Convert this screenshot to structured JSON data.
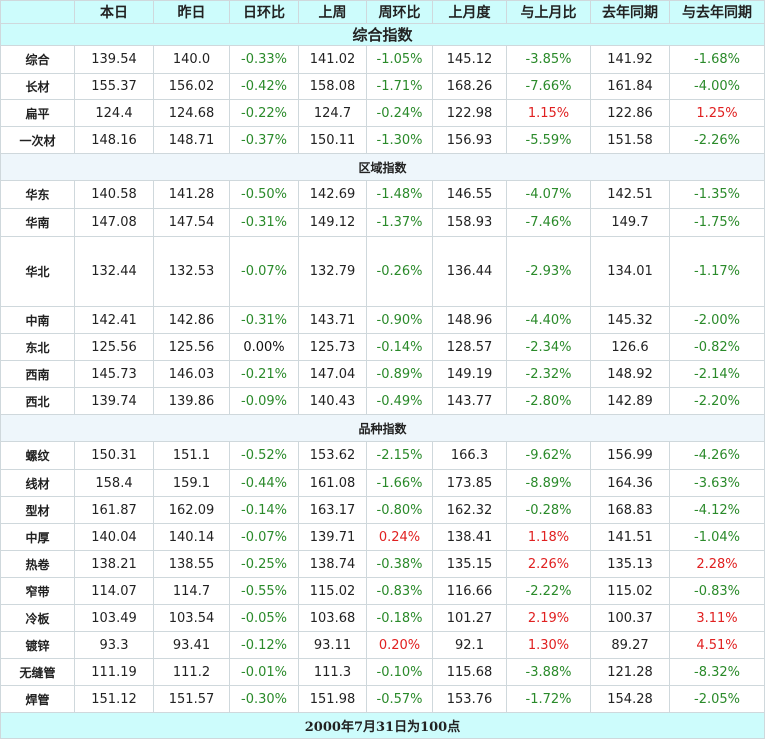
{
  "headers": [
    "",
    "本日",
    "昨日",
    "日环比",
    "上周",
    "周环比",
    "上月度",
    "与上月比",
    "去年同期",
    "与去年同期"
  ],
  "title": "综合指数",
  "footer": "2000年7月31日为100点",
  "colors": {
    "header_bg": "#cdfcfc",
    "negative": "#2a8a2a",
    "positive": "#e02020"
  },
  "sections": [
    {
      "label": "",
      "rows": [
        {
          "name": "综合",
          "cells": [
            "139.54",
            "140.0",
            "-0.33%",
            "141.02",
            "-1.05%",
            "145.12",
            "-3.85%",
            "141.92",
            "-1.68%"
          ],
          "h": 28
        },
        {
          "name": "长材",
          "cells": [
            "155.37",
            "156.02",
            "-0.42%",
            "158.08",
            "-1.71%",
            "168.26",
            "-7.66%",
            "161.84",
            "-4.00%"
          ],
          "h": 26
        },
        {
          "name": "扁平",
          "cells": [
            "124.4",
            "124.68",
            "-0.22%",
            "124.7",
            "-0.24%",
            "122.98",
            "1.15%",
            "122.86",
            "1.25%"
          ],
          "h": 27
        },
        {
          "name": "一次材",
          "cells": [
            "148.16",
            "148.71",
            "-0.37%",
            "150.11",
            "-1.30%",
            "156.93",
            "-5.59%",
            "151.58",
            "-2.26%"
          ],
          "h": 27
        }
      ]
    },
    {
      "label": "区域指数",
      "rows": [
        {
          "name": "华东",
          "cells": [
            "140.58",
            "141.28",
            "-0.50%",
            "142.69",
            "-1.48%",
            "146.55",
            "-4.07%",
            "142.51",
            "-1.35%"
          ],
          "h": 28
        },
        {
          "name": "华南",
          "cells": [
            "147.08",
            "147.54",
            "-0.31%",
            "149.12",
            "-1.37%",
            "158.93",
            "-7.46%",
            "149.7",
            "-1.75%"
          ],
          "h": 28
        },
        {
          "name": "华北",
          "cells": [
            "132.44",
            "132.53",
            "-0.07%",
            "132.79",
            "-0.26%",
            "136.44",
            "-2.93%",
            "134.01",
            "-1.17%"
          ],
          "h": 70
        },
        {
          "name": "中南",
          "cells": [
            "142.41",
            "142.86",
            "-0.31%",
            "143.71",
            "-0.90%",
            "148.96",
            "-4.40%",
            "145.32",
            "-2.00%"
          ],
          "h": 27
        },
        {
          "name": "东北",
          "cells": [
            "125.56",
            "125.56",
            "0.00%",
            "125.73",
            "-0.14%",
            "128.57",
            "-2.34%",
            "126.6",
            "-0.82%"
          ],
          "h": 27
        },
        {
          "name": "西南",
          "cells": [
            "145.73",
            "146.03",
            "-0.21%",
            "147.04",
            "-0.89%",
            "149.19",
            "-2.32%",
            "148.92",
            "-2.14%"
          ],
          "h": 27
        },
        {
          "name": "西北",
          "cells": [
            "139.74",
            "139.86",
            "-0.09%",
            "140.43",
            "-0.49%",
            "143.77",
            "-2.80%",
            "142.89",
            "-2.20%"
          ],
          "h": 27
        }
      ]
    },
    {
      "label": "品种指数",
      "rows": [
        {
          "name": "螺纹",
          "cells": [
            "150.31",
            "151.1",
            "-0.52%",
            "153.62",
            "-2.15%",
            "166.3",
            "-9.62%",
            "156.99",
            "-4.26%"
          ],
          "h": 28
        },
        {
          "name": "线材",
          "cells": [
            "158.4",
            "159.1",
            "-0.44%",
            "161.08",
            "-1.66%",
            "173.85",
            "-8.89%",
            "164.36",
            "-3.63%"
          ],
          "h": 27
        },
        {
          "name": "型材",
          "cells": [
            "161.87",
            "162.09",
            "-0.14%",
            "163.17",
            "-0.80%",
            "162.32",
            "-0.28%",
            "168.83",
            "-4.12%"
          ],
          "h": 27
        },
        {
          "name": "中厚",
          "cells": [
            "140.04",
            "140.14",
            "-0.07%",
            "139.71",
            "0.24%",
            "138.41",
            "1.18%",
            "141.51",
            "-1.04%"
          ],
          "h": 27
        },
        {
          "name": "热卷",
          "cells": [
            "138.21",
            "138.55",
            "-0.25%",
            "138.74",
            "-0.38%",
            "135.15",
            "2.26%",
            "135.13",
            "2.28%"
          ],
          "h": 27
        },
        {
          "name": "窄带",
          "cells": [
            "114.07",
            "114.7",
            "-0.55%",
            "115.02",
            "-0.83%",
            "116.66",
            "-2.22%",
            "115.02",
            "-0.83%"
          ],
          "h": 27
        },
        {
          "name": "冷板",
          "cells": [
            "103.49",
            "103.54",
            "-0.05%",
            "103.68",
            "-0.18%",
            "101.27",
            "2.19%",
            "100.37",
            "3.11%"
          ],
          "h": 27
        },
        {
          "name": "镀锌",
          "cells": [
            "93.3",
            "93.41",
            "-0.12%",
            "93.11",
            "0.20%",
            "92.1",
            "1.30%",
            "89.27",
            "4.51%"
          ],
          "h": 27
        },
        {
          "name": "无缝管",
          "cells": [
            "111.19",
            "111.2",
            "-0.01%",
            "111.3",
            "-0.10%",
            "115.68",
            "-3.88%",
            "121.28",
            "-8.32%"
          ],
          "h": 27
        },
        {
          "name": "焊管",
          "cells": [
            "151.12",
            "151.57",
            "-0.30%",
            "151.98",
            "-0.57%",
            "153.76",
            "-1.72%",
            "154.28",
            "-2.05%"
          ],
          "h": 27
        }
      ]
    }
  ]
}
